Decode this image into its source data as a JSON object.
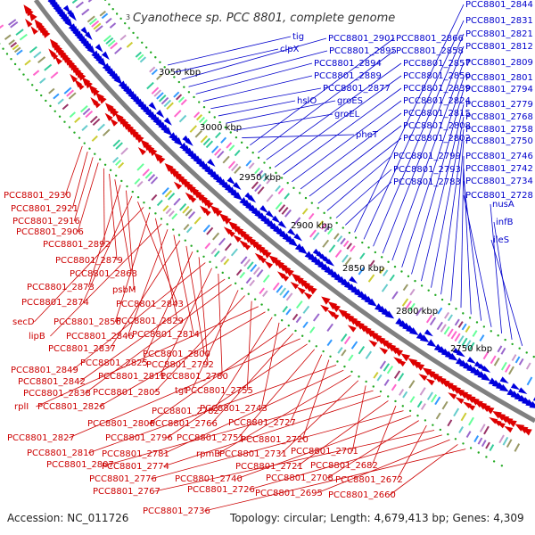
{
  "title": "Cyanothece sp. PCC 8801, complete genome",
  "accession": "Accession: NC_011726",
  "topology": "Topology: circular; Length: 4,679,413 bp; Genes: 4,309",
  "title_marker": "3",
  "colors": {
    "forward": "#0000dd",
    "reverse": "#dd0000",
    "backbone": "#808080",
    "tick_green": "#22aa22",
    "label_blue": "#0000cc",
    "label_red": "#cc0000"
  },
  "scale_ticks": [
    "3050 kbp",
    "3000 kbp",
    "2950 kbp",
    "2900 kbp",
    "2850 kbp",
    "2800 kbp",
    "2750 kbp"
  ],
  "blue_labels": [
    "tig",
    "clpX",
    "PCC8801_2901",
    "PCC8801_2895",
    "PCC8801_2894",
    "PCC8801_2889",
    "PCC8801_2877",
    "hslO",
    "groES",
    "groEL",
    "pheT",
    "PCC8801_2866",
    "PCC8801_2858",
    "PCC8801_2857",
    "PCC8801_2850",
    "PCC8801_2839",
    "PCC8801_2824",
    "PCC8801_2815",
    "PCC8801_2808",
    "PCC8801_2802",
    "PCC8801_2799",
    "PCC8801_2793",
    "PCC8801_2783",
    "PCC8801_2844",
    "PCC8801_2831",
    "PCC8801_2821",
    "PCC8801_2812",
    "PCC8801_2809",
    "PCC8801_2801",
    "PCC8801_2794",
    "PCC8801_2779",
    "PCC8801_2768",
    "PCC8801_2758",
    "PCC8801_2750",
    "PCC8801_2746",
    "PCC8801_2742",
    "PCC8801_2734",
    "PCC8801_2728",
    "nusA",
    "infB",
    "ileS"
  ],
  "red_labels": [
    "PCC8801_2930",
    "PCC8801_2921",
    "PCC8801_2916",
    "PCC8801_2906",
    "PCC8801_2892",
    "PCC8801_2879",
    "PCC8801_2868",
    "PCC8801_2873",
    "psbM",
    "PCC8801_2874",
    "PCC8801_2843",
    "secD",
    "PCC8801_2856",
    "PCC8801_2829",
    "lipB",
    "PCC8801_2846",
    "PCC8801_2814",
    "PCC8801_2837",
    "PCC8801_2800",
    "PCC8801_2825",
    "PCC8801_2792",
    "PCC8801_2849",
    "PCC8801_2811",
    "PCC8801_2780",
    "PCC8801_2842",
    "PCC8801_2838",
    "tgt",
    "PCC8801_2805",
    "PCC8801_2755",
    "rplI",
    "PCC8801_2826",
    "PCC8801_2782",
    "PCC8801_2743",
    "PCC8801_2806",
    "PCC8801_2766",
    "PCC8801_2827",
    "PCC8801_2796",
    "PCC8801_2751",
    "PCC8801_2727",
    "PCC8801_2720",
    "PCC8801_2810",
    "PCC8801_2781",
    "rpmB",
    "PCC8801_2731",
    "PCC8801_2701",
    "PCC8801_2807",
    "PCC8801_2774",
    "PCC8801_2721",
    "PCC8801_2682",
    "PCC8801_2776",
    "PCC8801_2740",
    "PCC8801_2708",
    "PCC8801_2672",
    "PCC8801_2767",
    "PCC8801_2726",
    "PCC8801_2695",
    "PCC8801_2660",
    "PCC8801_2736"
  ]
}
